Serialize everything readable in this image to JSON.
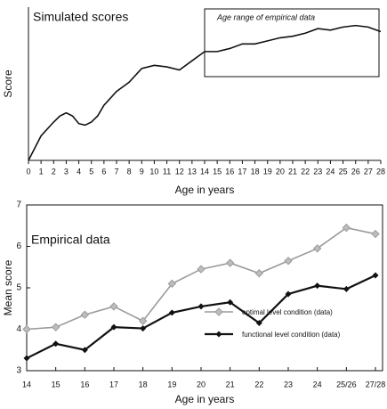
{
  "chart_data": [
    {
      "type": "line",
      "title": "Simulated scores",
      "x_label": "Age in years",
      "y_label": "Score",
      "x": [
        0,
        1,
        2,
        2.5,
        3,
        3.5,
        4,
        4.5,
        5,
        5.5,
        6,
        7,
        8,
        9,
        10,
        11,
        12,
        13,
        14,
        15,
        16,
        17,
        18,
        19,
        20,
        21,
        22,
        23,
        24,
        25,
        26,
        27,
        28
      ],
      "series": [
        {
          "color": "#111111",
          "values": [
            0,
            1.6,
            2.5,
            2.9,
            3.1,
            2.9,
            2.4,
            2.3,
            2.5,
            2.9,
            3.6,
            4.5,
            5.1,
            6.0,
            6.2,
            6.1,
            5.9,
            6.5,
            7.1,
            7.1,
            7.3,
            7.6,
            7.6,
            7.8,
            8.0,
            8.1,
            8.3,
            8.6,
            8.5,
            8.7,
            8.8,
            8.7,
            8.4
          ]
        }
      ],
      "xlim": [
        0,
        28
      ],
      "xticks": [
        0,
        1,
        2,
        3,
        4,
        5,
        6,
        7,
        8,
        9,
        10,
        11,
        12,
        13,
        14,
        15,
        16,
        17,
        18,
        19,
        20,
        21,
        22,
        23,
        24,
        25,
        26,
        27,
        28
      ],
      "ylim": [
        0,
        10
      ],
      "annotation": "Age range of empirical data",
      "annotation_xrange": [
        14,
        28
      ]
    },
    {
      "type": "category_line",
      "title": "Empirical data",
      "x_label": "Age in years",
      "y_label": "Mean score",
      "categories": [
        "14",
        "15",
        "16",
        "17",
        "18",
        "19",
        "20",
        "21",
        "22",
        "23",
        "24",
        "25/26",
        "27/28"
      ],
      "series": [
        {
          "name": "optimal level condition (data)",
          "color": "#9a9a9a",
          "values": [
            4.0,
            4.05,
            4.35,
            4.55,
            4.2,
            5.1,
            5.45,
            5.6,
            5.35,
            5.65,
            5.95,
            6.45,
            6.3
          ]
        },
        {
          "name": "functional level condition (data)",
          "color": "#111111",
          "values": [
            3.3,
            3.65,
            3.5,
            4.05,
            4.02,
            4.4,
            4.55,
            4.65,
            4.15,
            4.85,
            5.05,
            4.97,
            5.3
          ]
        }
      ],
      "ylim": [
        3,
        7
      ],
      "yticks": [
        3,
        4,
        5,
        6,
        7
      ],
      "legend": "lower right"
    }
  ]
}
